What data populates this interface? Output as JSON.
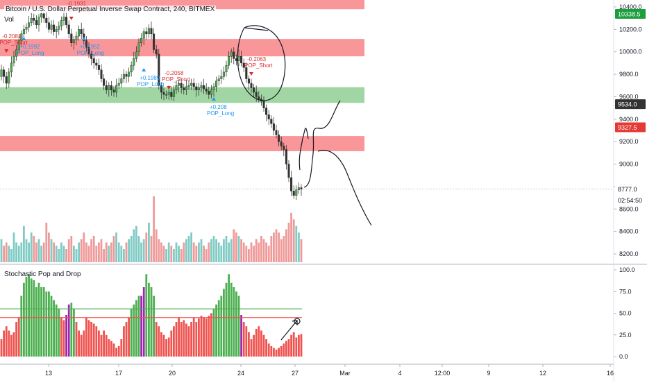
{
  "header": {
    "title": "Bitcoin / U.S. Dollar Perpetual Inverse Swap Contract, 240, BITMEX",
    "volume_label": "Vol"
  },
  "indicator": {
    "title": "Stochastic Pop and Drop",
    "upper_level": 55,
    "lower_level": 45,
    "yticks": [
      "100.0",
      "75.0",
      "50.0",
      "25.0",
      "0.0"
    ]
  },
  "price_axis": {
    "ticks": [
      "10400.0",
      "10200.0",
      "10000.0",
      "9800.0",
      "9600.0",
      "9400.0",
      "9200.0",
      "9000.0",
      "8800.0",
      "8600.0",
      "8400.0",
      "8200.0"
    ],
    "current_price": "8777.0",
    "countdown": "02:54:50",
    "high_tag": "10338.5",
    "green_level_tag": "9534.0",
    "red_level_tag": "9327.5"
  },
  "time_axis": {
    "ticks": [
      "13",
      "17",
      "20",
      "24",
      "27",
      "Mar",
      "4",
      "12:00",
      "9",
      "12",
      "16"
    ]
  },
  "colors": {
    "bull": "#26a69a",
    "bear": "#ef5350",
    "vol_bull": "#80cbc4",
    "vol_bear": "#ef9a9a",
    "stoch_green": "#4caf50",
    "stoch_red": "#ef5350",
    "stoch_purple": "#9c27b0",
    "red_zone": "#f77c80",
    "green_zone": "#81c784",
    "axis_text": "#131722"
  },
  "zones": [
    {
      "type": "resistance",
      "low": 10380,
      "high": 10470
    },
    {
      "type": "resistance",
      "low": 9960,
      "high": 10115
    },
    {
      "type": "support",
      "low": 9545,
      "high": 9685
    },
    {
      "type": "resistance",
      "low": 9115,
      "high": 9250
    }
  ],
  "signals": [
    {
      "kind": "POP_Short",
      "value": "-0.2081"
    },
    {
      "kind": "POP_Long",
      "value": "+0.1992"
    },
    {
      "kind": "POP_Short",
      "value": "-0.1931"
    },
    {
      "kind": "POP_Long",
      "value": "+0.1952"
    },
    {
      "kind": "POP_Long",
      "value": "+0.1989"
    },
    {
      "kind": "POP_Short",
      "value": "-0.2058"
    },
    {
      "kind": "POP_Long",
      "value": "+0.208"
    },
    {
      "kind": "POP_Short",
      "value": "-0.2063"
    }
  ],
  "chart_data": {
    "type": "candlestick",
    "title": "Bitcoin / U.S. Dollar Perpetual Inverse Swap Contract, 240, BITMEX",
    "xlabel": "",
    "ylabel": "",
    "ylim": [
      8100,
      10480
    ],
    "x_range": [
      "Feb 10",
      "Mar 16"
    ],
    "close": [
      9840,
      9780,
      9720,
      9820,
      9900,
      9960,
      10020,
      10100,
      10160,
      10200,
      10220,
      10260,
      10300,
      10280,
      10240,
      10310,
      10340,
      10300,
      10260,
      10200,
      10240,
      10180,
      10200,
      10230,
      10280,
      10310,
      10240,
      10160,
      10080,
      10110,
      10140,
      10200,
      10160,
      10100,
      10040,
      9980,
      9940,
      9900,
      9880,
      9840,
      9760,
      9700,
      9660,
      9700,
      9660,
      9640,
      9700,
      9720,
      9760,
      9800,
      9780,
      9820,
      9880,
      9940,
      10000,
      10080,
      10120,
      10180,
      10160,
      10210,
      10160,
      10020,
      9980,
      9700,
      9640,
      9620,
      9620,
      9640,
      9600,
      9660,
      9700,
      9720,
      9680,
      9660,
      9690,
      9700,
      9720,
      9690,
      9660,
      9680,
      9700,
      9670,
      9650,
      9620,
      9660,
      9690,
      9740,
      9760,
      9780,
      9820,
      9880,
      9960,
      10000,
      9940,
      9920,
      9960,
      9900,
      9860,
      9760,
      9720,
      9680,
      9640,
      9600,
      9580,
      9560,
      9500,
      9440,
      9400,
      9360,
      9300,
      9260,
      9200,
      9160,
      9130,
      9000,
      8880,
      8760,
      8720,
      8770,
      8790,
      8777
    ],
    "volume": [
      0.35,
      0.25,
      0.3,
      0.25,
      0.2,
      0.45,
      0.3,
      0.25,
      0.3,
      0.55,
      0.35,
      0.3,
      0.45,
      0.4,
      0.3,
      0.35,
      0.25,
      0.3,
      0.6,
      0.45,
      0.35,
      0.3,
      0.25,
      0.2,
      0.3,
      0.25,
      0.2,
      0.35,
      0.4,
      0.25,
      0.2,
      0.3,
      0.35,
      0.45,
      0.3,
      0.25,
      0.35,
      0.4,
      0.25,
      0.3,
      0.35,
      0.2,
      0.3,
      0.25,
      0.3,
      0.4,
      0.45,
      0.3,
      0.25,
      0.2,
      0.3,
      0.35,
      0.4,
      0.5,
      0.55,
      0.4,
      0.3,
      0.35,
      0.45,
      0.6,
      0.4,
      1.0,
      0.5,
      0.35,
      0.3,
      0.25,
      0.2,
      0.3,
      0.25,
      0.2,
      0.3,
      0.25,
      0.2,
      0.3,
      0.35,
      0.4,
      0.45,
      0.3,
      0.25,
      0.3,
      0.35,
      0.25,
      0.2,
      0.3,
      0.35,
      0.4,
      0.35,
      0.3,
      0.25,
      0.35,
      0.4,
      0.3,
      0.35,
      0.5,
      0.45,
      0.4,
      0.35,
      0.3,
      0.25,
      0.2,
      0.3,
      0.25,
      0.35,
      0.3,
      0.4,
      0.35,
      0.3,
      0.25,
      0.4,
      0.45,
      0.5,
      0.45,
      0.35,
      0.4,
      0.5,
      0.6,
      0.75,
      0.65,
      0.55,
      0.45,
      0.35
    ],
    "stochastic": [
      20,
      30,
      35,
      30,
      25,
      28,
      40,
      45,
      70,
      85,
      92,
      95,
      90,
      88,
      80,
      85,
      80,
      80,
      75,
      75,
      70,
      65,
      60,
      55,
      45,
      42,
      48,
      60,
      62,
      55,
      40,
      30,
      25,
      30,
      45,
      42,
      40,
      38,
      35,
      30,
      25,
      30,
      25,
      20,
      18,
      15,
      10,
      12,
      20,
      35,
      40,
      45,
      55,
      60,
      65,
      70,
      70,
      80,
      95,
      85,
      80,
      70,
      40,
      35,
      28,
      25,
      20,
      22,
      30,
      35,
      40,
      45,
      40,
      42,
      38,
      35,
      40,
      45,
      40,
      44,
      47,
      45,
      44,
      47,
      50,
      55,
      60,
      65,
      70,
      78,
      85,
      95,
      85,
      80,
      75,
      70,
      48,
      40,
      35,
      28,
      20,
      25,
      32,
      35,
      30,
      25,
      20,
      15,
      12,
      10,
      8,
      10,
      12,
      15,
      18,
      20,
      25,
      28,
      22,
      25,
      26
    ]
  }
}
